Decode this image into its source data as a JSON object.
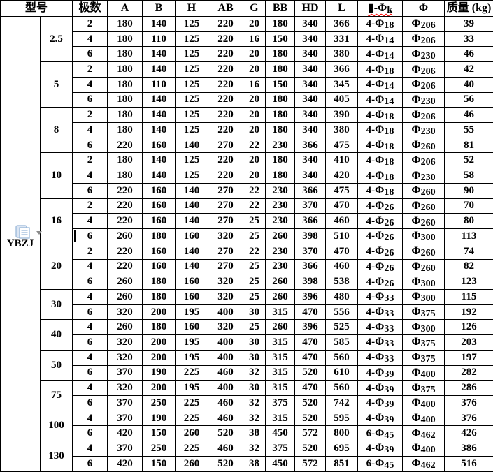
{
  "table": {
    "model_label": "型号",
    "poles_label": "极数",
    "column_labels": [
      "A",
      "B",
      "H",
      "AB",
      "G",
      "BB",
      "HD",
      "L",
      "▮-Φk",
      "Φ",
      "质量 (kg)"
    ],
    "model_value": "YBZJ",
    "groups": [
      {
        "power": "2.5",
        "rows": [
          {
            "poles": "2",
            "values": [
              "180",
              "140",
              "125",
              "220",
              "20",
              "180",
              "340",
              "366",
              "4-Φ18",
              "Φ206",
              "39"
            ]
          },
          {
            "poles": "4",
            "values": [
              "180",
              "110",
              "125",
              "220",
              "16",
              "150",
              "340",
              "331",
              "4-Φ14",
              "Φ206",
              "33"
            ]
          },
          {
            "poles": "6",
            "values": [
              "180",
              "140",
              "125",
              "220",
              "20",
              "180",
              "340",
              "380",
              "4-Φ14",
              "Φ230",
              "46"
            ]
          }
        ]
      },
      {
        "power": "5",
        "rows": [
          {
            "poles": "2",
            "values": [
              "180",
              "140",
              "125",
              "220",
              "20",
              "180",
              "340",
              "366",
              "4-Φ18",
              "Φ206",
              "42"
            ]
          },
          {
            "poles": "4",
            "values": [
              "180",
              "110",
              "125",
              "220",
              "16",
              "150",
              "340",
              "345",
              "4-Φ14",
              "Φ206",
              "40"
            ]
          },
          {
            "poles": "6",
            "values": [
              "180",
              "140",
              "125",
              "220",
              "20",
              "180",
              "340",
              "405",
              "4-Φ14",
              "Φ230",
              "56"
            ]
          }
        ]
      },
      {
        "power": "8",
        "rows": [
          {
            "poles": "2",
            "values": [
              "180",
              "140",
              "125",
              "220",
              "20",
              "180",
              "340",
              "390",
              "4-Φ18",
              "Φ206",
              "46"
            ]
          },
          {
            "poles": "4",
            "values": [
              "180",
              "140",
              "125",
              "220",
              "20",
              "180",
              "340",
              "380",
              "4-Φ18",
              "Φ230",
              "55"
            ]
          },
          {
            "poles": "6",
            "values": [
              "220",
              "160",
              "140",
              "270",
              "22",
              "230",
              "366",
              "475",
              "4-Φ18",
              "Φ260",
              "81"
            ]
          }
        ]
      },
      {
        "power": "10",
        "rows": [
          {
            "poles": "2",
            "values": [
              "180",
              "140",
              "125",
              "220",
              "20",
              "180",
              "340",
              "410",
              "4-Φ18",
              "Φ206",
              "52"
            ]
          },
          {
            "poles": "4",
            "values": [
              "180",
              "140",
              "125",
              "220",
              "20",
              "180",
              "340",
              "420",
              "4-Φ18",
              "Φ230",
              "58"
            ]
          },
          {
            "poles": "6",
            "values": [
              "220",
              "160",
              "140",
              "270",
              "22",
              "230",
              "366",
              "475",
              "4-Φ18",
              "Φ260",
              "90"
            ]
          }
        ]
      },
      {
        "power": "16",
        "rows": [
          {
            "poles": "2",
            "values": [
              "220",
              "160",
              "140",
              "270",
              "22",
              "230",
              "370",
              "470",
              "4-Φ26",
              "Φ260",
              "70"
            ]
          },
          {
            "poles": "4",
            "values": [
              "220",
              "160",
              "140",
              "270",
              "25",
              "230",
              "366",
              "460",
              "4-Φ26",
              "Φ260",
              "80"
            ]
          },
          {
            "poles": "6",
            "values": [
              "260",
              "180",
              "160",
              "320",
              "25",
              "260",
              "398",
              "510",
              "4-Φ26",
              "Φ300",
              "113"
            ]
          }
        ]
      },
      {
        "power": "20",
        "rows": [
          {
            "poles": "2",
            "values": [
              "220",
              "160",
              "140",
              "270",
              "22",
              "230",
              "370",
              "470",
              "4-Φ26",
              "Φ260",
              "74"
            ]
          },
          {
            "poles": "4",
            "values": [
              "220",
              "160",
              "140",
              "270",
              "25",
              "230",
              "366",
              "460",
              "4-Φ26",
              "Φ260",
              "82"
            ]
          },
          {
            "poles": "6",
            "values": [
              "260",
              "180",
              "160",
              "320",
              "25",
              "260",
              "398",
              "538",
              "4-Φ26",
              "Φ300",
              "123"
            ]
          }
        ]
      },
      {
        "power": "30",
        "rows": [
          {
            "poles": "4",
            "values": [
              "260",
              "180",
              "160",
              "320",
              "25",
              "260",
              "396",
              "480",
              "4-Φ33",
              "Φ300",
              "115"
            ]
          },
          {
            "poles": "6",
            "values": [
              "320",
              "200",
              "195",
              "400",
              "30",
              "315",
              "470",
              "556",
              "4-Φ33",
              "Φ375",
              "192"
            ]
          }
        ]
      },
      {
        "power": "40",
        "rows": [
          {
            "poles": "4",
            "values": [
              "260",
              "180",
              "160",
              "320",
              "25",
              "260",
              "396",
              "525",
              "4-Φ33",
              "Φ300",
              "126"
            ]
          },
          {
            "poles": "6",
            "values": [
              "320",
              "200",
              "195",
              "400",
              "30",
              "315",
              "470",
              "585",
              "4-Φ33",
              "Φ375",
              "203"
            ]
          }
        ]
      },
      {
        "power": "50",
        "rows": [
          {
            "poles": "4",
            "values": [
              "320",
              "200",
              "195",
              "400",
              "30",
              "315",
              "470",
              "560",
              "4-Φ33",
              "Φ375",
              "197"
            ]
          },
          {
            "poles": "6",
            "values": [
              "370",
              "190",
              "225",
              "460",
              "32",
              "315",
              "520",
              "610",
              "4-Φ39",
              "Φ400",
              "282"
            ]
          }
        ]
      },
      {
        "power": "75",
        "rows": [
          {
            "poles": "4",
            "values": [
              "320",
              "200",
              "195",
              "400",
              "30",
              "315",
              "470",
              "560",
              "4-Φ39",
              "Φ375",
              "286"
            ]
          },
          {
            "poles": "6",
            "values": [
              "370",
              "250",
              "225",
              "460",
              "32",
              "375",
              "520",
              "742",
              "4-Φ39",
              "Φ400",
              "376"
            ]
          }
        ]
      },
      {
        "power": "100",
        "rows": [
          {
            "poles": "4",
            "values": [
              "370",
              "190",
              "225",
              "460",
              "32",
              "315",
              "520",
              "595",
              "4-Φ39",
              "Φ400",
              "376"
            ]
          },
          {
            "poles": "6",
            "values": [
              "420",
              "150",
              "260",
              "520",
              "38",
              "450",
              "572",
              "800",
              "6-Φ45",
              "Φ462",
              "426"
            ]
          }
        ]
      },
      {
        "power": "130",
        "rows": [
          {
            "poles": "4",
            "values": [
              "370",
              "250",
              "225",
              "460",
              "32",
              "375",
              "520",
              "695",
              "4-Φ39",
              "Φ400",
              "386"
            ]
          },
          {
            "poles": "6",
            "values": [
              "420",
              "150",
              "260",
              "520",
              "38",
              "450",
              "572",
              "851",
              "6-Φ45",
              "Φ462",
              "516"
            ]
          }
        ]
      }
    ]
  },
  "colors": {
    "border": "#000000",
    "spellcheck_underline": "#ff0000",
    "paste_icon_fill": "#dce6f4",
    "paste_icon_stroke": "#94b3d7",
    "dropdown_arrow": "#8a8a8a"
  }
}
